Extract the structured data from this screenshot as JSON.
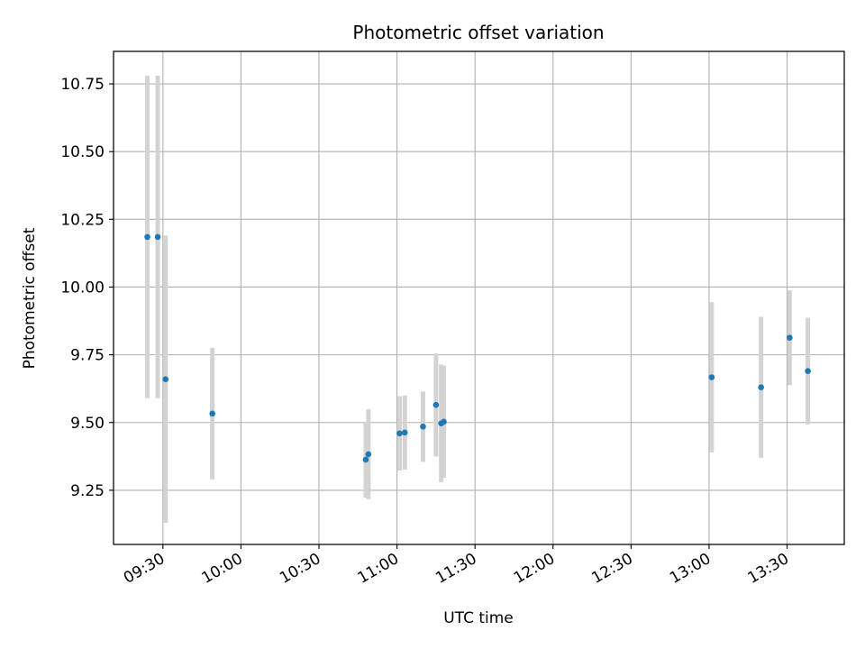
{
  "chart_data": {
    "type": "scatter",
    "title": "Photometric offset variation",
    "xlabel": "UTC time",
    "ylabel": "Photometric offset",
    "x_axis_type": "time",
    "x_range": [
      "09:11",
      "13:52"
    ],
    "xticks": [
      "09:30",
      "10:00",
      "10:30",
      "11:00",
      "11:30",
      "12:00",
      "12:30",
      "13:00",
      "13:30"
    ],
    "ylim": [
      9.05,
      10.87
    ],
    "yticks": [
      9.25,
      9.5,
      9.75,
      10.0,
      10.25,
      10.5,
      10.75
    ],
    "ytick_labels": [
      "9.25",
      "9.50",
      "9.75",
      "10.00",
      "10.25",
      "10.50",
      "10.75"
    ],
    "grid": true,
    "marker_color": "#1f77b4",
    "errorbar_color": "#d3d3d3",
    "points": [
      {
        "x": "09:24",
        "y": 10.185,
        "err": 0.595
      },
      {
        "x": "09:28",
        "y": 10.185,
        "err": 0.595
      },
      {
        "x": "09:31",
        "y": 9.66,
        "err": 0.53
      },
      {
        "x": "09:49",
        "y": 9.533,
        "err": 0.243
      },
      {
        "x": "10:48",
        "y": 9.363,
        "err": 0.14
      },
      {
        "x": "10:49",
        "y": 9.383,
        "err": 0.166
      },
      {
        "x": "11:01",
        "y": 9.46,
        "err": 0.137
      },
      {
        "x": "11:03",
        "y": 9.463,
        "err": 0.137
      },
      {
        "x": "11:10",
        "y": 9.485,
        "err": 0.13
      },
      {
        "x": "11:15",
        "y": 9.565,
        "err": 0.19
      },
      {
        "x": "11:17",
        "y": 9.497,
        "err": 0.217
      },
      {
        "x": "11:18",
        "y": 9.503,
        "err": 0.207
      },
      {
        "x": "13:01",
        "y": 9.667,
        "err": 0.277
      },
      {
        "x": "13:20",
        "y": 9.63,
        "err": 0.26
      },
      {
        "x": "13:31",
        "y": 9.813,
        "err": 0.175
      },
      {
        "x": "13:38",
        "y": 9.69,
        "err": 0.197
      }
    ]
  }
}
